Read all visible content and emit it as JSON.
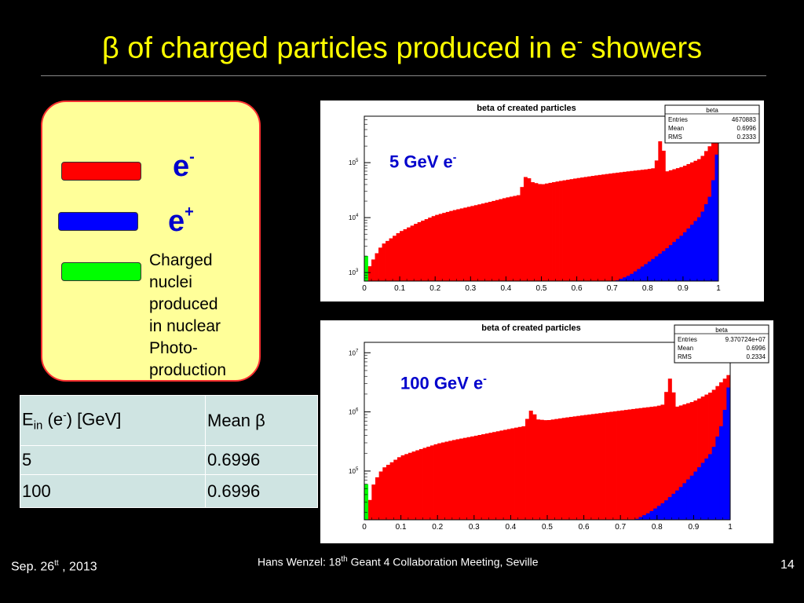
{
  "slide": {
    "title_symbol": "β",
    "title_text": " of charged particles produced in e",
    "title_sup": "-",
    "title_end": " showers",
    "slide_number": "14",
    "footer_date_a": "Sep.  26",
    "footer_date_sup": "tt",
    "footer_date_b": " , 2013",
    "footer_author": "Hans Wenzel:    18",
    "footer_th": "th",
    "footer_meeting": " Geant 4 Collaboration Meeting, Seville"
  },
  "legend": {
    "items": [
      {
        "text": "e",
        "sup": "-",
        "color": "#ff0000"
      },
      {
        "text": "e",
        "sup": "+",
        "color": "#0000ff"
      },
      {
        "text": "Charged nuclei produced in nuclear Photo-production",
        "sup": "",
        "color": "#00ff00"
      }
    ],
    "nuclei_lines": [
      "Charged",
      "nuclei",
      "produced",
      "in nuclear",
      "Photo-",
      "production"
    ]
  },
  "table": {
    "header_e": "E",
    "header_sub": "in",
    "header_paren": " (e",
    "header_sup": "-",
    "header_unit": ") [GeV]",
    "header_mean": "Mean ",
    "header_beta": "β",
    "rows": [
      {
        "energy": "5",
        "mean": "0.6996"
      },
      {
        "energy": "100",
        "mean": "0.6996"
      }
    ]
  },
  "colors": {
    "electron": "#ff0000",
    "positron": "#0000ff",
    "nuclei": "#00ff00",
    "title": "#ffff00",
    "annotation": "#0000cc"
  },
  "chart_data": [
    {
      "type": "bar",
      "title": "beta of created particles",
      "annotation_text": "5 GeV e",
      "annotation_sup": "-",
      "stats": {
        "name": "beta",
        "entries_label": "Entries",
        "entries": "4670883",
        "mean_label": "Mean",
        "mean": "0.6996",
        "rms_label": "RMS",
        "rms": "0.2333"
      },
      "xlim": [
        0,
        1
      ],
      "ylim": [
        700,
        700000
      ],
      "ylog": true,
      "xticks": [
        0,
        0.1,
        0.2,
        0.3,
        0.4,
        0.5,
        0.6,
        0.7,
        0.8,
        0.9,
        1
      ],
      "xtick_labels": [
        "0",
        "0.1",
        "0.2",
        "0.3",
        "0.4",
        "0.5",
        "0.6",
        "0.7",
        "0.8",
        "0.9",
        "1"
      ],
      "yticks": [
        1000,
        10000,
        100000
      ],
      "ytick_labels": [
        "10",
        "10",
        "10"
      ],
      "ytick_sups": [
        "3",
        "4",
        "5"
      ],
      "series": [
        {
          "name": "e-",
          "color": "#ff0000",
          "points": [
            [
              0.01,
              700
            ],
            [
              0.012,
              1200
            ],
            [
              0.02,
              1500
            ],
            [
              0.03,
              2000
            ],
            [
              0.05,
              3200
            ],
            [
              0.1,
              5500
            ],
            [
              0.15,
              8000
            ],
            [
              0.2,
              11000
            ],
            [
              0.25,
              13500
            ],
            [
              0.3,
              16000
            ],
            [
              0.35,
              19000
            ],
            [
              0.4,
              23000
            ],
            [
              0.44,
              26000
            ],
            [
              0.45,
              50000
            ],
            [
              0.46,
              60000
            ],
            [
              0.47,
              45000
            ],
            [
              0.5,
              40000
            ],
            [
              0.55,
              46000
            ],
            [
              0.6,
              52000
            ],
            [
              0.65,
              58000
            ],
            [
              0.7,
              64000
            ],
            [
              0.75,
              70000
            ],
            [
              0.8,
              76000
            ],
            [
              0.81,
              78000
            ],
            [
              0.82,
              80000
            ],
            [
              0.83,
              150000
            ],
            [
              0.84,
              400000
            ],
            [
              0.85,
              68000
            ],
            [
              0.9,
              85000
            ],
            [
              0.95,
              120000
            ],
            [
              0.98,
              220000
            ],
            [
              1.0,
              260000
            ]
          ]
        },
        {
          "name": "e+",
          "color": "#0000ff",
          "points": [
            [
              0.71,
              700
            ],
            [
              0.75,
              900
            ],
            [
              0.8,
              1500
            ],
            [
              0.85,
              2600
            ],
            [
              0.9,
              5000
            ],
            [
              0.95,
              11000
            ],
            [
              0.98,
              28000
            ],
            [
              1.0,
              240000
            ]
          ]
        },
        {
          "name": "nuclei",
          "color": "#00ff00",
          "points": [
            [
              0.0,
              700
            ],
            [
              0.002,
              1600
            ],
            [
              0.005,
              2000
            ],
            [
              0.01,
              2600
            ],
            [
              0.012,
              700
            ]
          ]
        }
      ]
    },
    {
      "type": "bar",
      "title": "beta of created particles",
      "annotation_text": "100 GeV e",
      "annotation_sup": "-",
      "stats": {
        "name": "beta",
        "entries_label": "Entries",
        "entries": "9.370724e+07",
        "mean_label": "Mean",
        "mean": "0.6996",
        "rms_label": "RMS",
        "rms": "0.2334"
      },
      "xlim": [
        0,
        1
      ],
      "ylim": [
        15000,
        15000000
      ],
      "ylog": true,
      "xticks": [
        0,
        0.1,
        0.2,
        0.3,
        0.4,
        0.5,
        0.6,
        0.7,
        0.8,
        0.9,
        1
      ],
      "xtick_labels": [
        "0",
        "0.1",
        "0.2",
        "0.3",
        "0.4",
        "0.5",
        "0.6",
        "0.7",
        "0.8",
        "0.9",
        "1"
      ],
      "yticks": [
        100000,
        1000000,
        10000000
      ],
      "ytick_labels": [
        "10",
        "10",
        "10"
      ],
      "ytick_sups": [
        "5",
        "6",
        "7"
      ],
      "series": [
        {
          "name": "e-",
          "color": "#ff0000",
          "points": [
            [
              0.01,
              15000
            ],
            [
              0.012,
              25000
            ],
            [
              0.02,
              50000
            ],
            [
              0.03,
              70000
            ],
            [
              0.05,
              110000
            ],
            [
              0.1,
              180000
            ],
            [
              0.15,
              230000
            ],
            [
              0.2,
              290000
            ],
            [
              0.25,
              340000
            ],
            [
              0.3,
              390000
            ],
            [
              0.35,
              450000
            ],
            [
              0.4,
              520000
            ],
            [
              0.44,
              580000
            ],
            [
              0.45,
              1000000
            ],
            [
              0.46,
              1100000
            ],
            [
              0.47,
              750000
            ],
            [
              0.5,
              720000
            ],
            [
              0.55,
              800000
            ],
            [
              0.6,
              880000
            ],
            [
              0.65,
              960000
            ],
            [
              0.7,
              1050000
            ],
            [
              0.75,
              1150000
            ],
            [
              0.8,
              1250000
            ],
            [
              0.81,
              1300000
            ],
            [
              0.82,
              1350000
            ],
            [
              0.83,
              3500000
            ],
            [
              0.84,
              3800000
            ],
            [
              0.85,
              1200000
            ],
            [
              0.9,
              1500000
            ],
            [
              0.95,
              2200000
            ],
            [
              0.98,
              3400000
            ],
            [
              1.0,
              4500000
            ]
          ]
        },
        {
          "name": "e+",
          "color": "#0000ff",
          "points": [
            [
              0.74,
              15000
            ],
            [
              0.78,
              20000
            ],
            [
              0.82,
              30000
            ],
            [
              0.86,
              50000
            ],
            [
              0.9,
              90000
            ],
            [
              0.95,
              210000
            ],
            [
              0.98,
              700000
            ],
            [
              1.0,
              4000000
            ]
          ]
        },
        {
          "name": "nuclei",
          "color": "#00ff00",
          "points": [
            [
              0.0,
              15000
            ],
            [
              0.002,
              48000
            ],
            [
              0.005,
              60000
            ],
            [
              0.01,
              70000
            ],
            [
              0.012,
              15000
            ]
          ]
        }
      ]
    }
  ]
}
